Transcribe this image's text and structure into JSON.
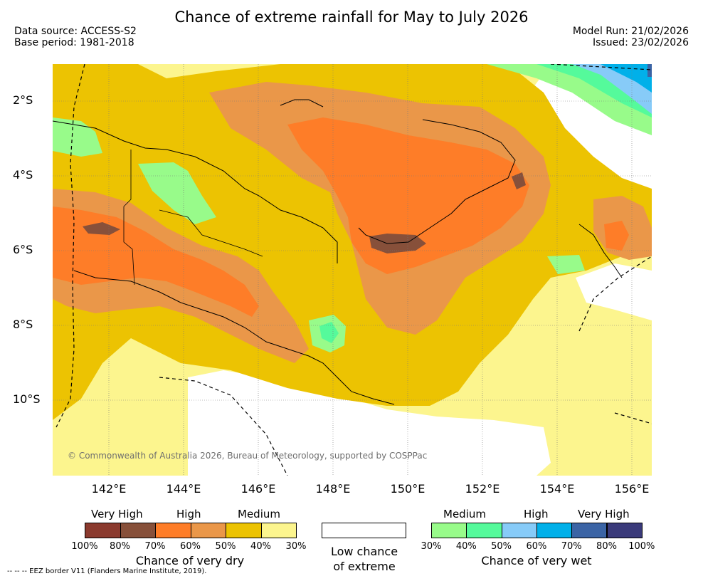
{
  "title": "Chance of extreme rainfall for May to July 2026",
  "meta": {
    "data_source": "Data source: ACCESS-S2",
    "base_period": "Base period: 1981-2018",
    "model_run": "Model Run: 21/02/2026",
    "issued": "Issued: 23/02/2026"
  },
  "map": {
    "lat_labels": [
      "2°S",
      "4°S",
      "6°S",
      "8°S",
      "10°S"
    ],
    "lon_labels": [
      "142°E",
      "144°E",
      "146°E",
      "148°E",
      "150°E",
      "152°E",
      "154°E",
      "156°E"
    ],
    "copyright": "© Commonwealth of Australia 2026, Bureau of Meteorology, supported by COSPPac"
  },
  "legend": {
    "dry": {
      "levels": [
        "Very High",
        "High",
        "Medium"
      ],
      "colors": [
        "#8b3a2e",
        "#87503a",
        "#fe7d28",
        "#ea9749",
        "#ecc302",
        "#fcf58e"
      ],
      "percent_labels": [
        "100%",
        "80%",
        "70%",
        "60%",
        "50%",
        "40%",
        "30%"
      ],
      "caption": "Chance of very dry"
    },
    "low": {
      "caption_line1": "Low chance",
      "caption_line2": "of extreme"
    },
    "wet": {
      "levels": [
        "Medium",
        "High",
        "Very High"
      ],
      "colors": [
        "#98fb8a",
        "#55fa9b",
        "#87cbf8",
        "#01b0e9",
        "#3b64a5",
        "#3a3a7a"
      ],
      "percent_labels": [
        "30%",
        "40%",
        "50%",
        "60%",
        "70%",
        "80%",
        "100%"
      ],
      "caption": "Chance of very wet"
    }
  },
  "eez_note": "--  --  -- EEZ border V11 (Flanders Marine Institute, 2019)."
}
